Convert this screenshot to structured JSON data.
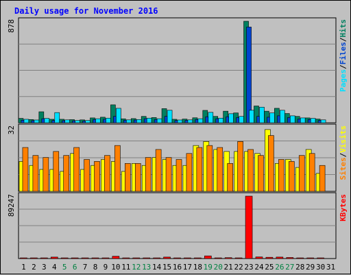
{
  "chart_data": {
    "type": "bar",
    "title": "Daily usage for November 2016",
    "x": [
      "1",
      "2",
      "3",
      "4",
      "5",
      "6",
      "7",
      "8",
      "9",
      "10",
      "11",
      "12",
      "13",
      "14",
      "15",
      "16",
      "17",
      "18",
      "19",
      "20",
      "21",
      "22",
      "23",
      "24",
      "25",
      "26",
      "27",
      "28",
      "29",
      "30",
      "31"
    ],
    "weekend_days": [
      5,
      6,
      12,
      13,
      19,
      20,
      26,
      27
    ],
    "panels": [
      {
        "id": "hits",
        "max_label": "878",
        "ymax": 878,
        "legend": [
          {
            "text": "Pages",
            "color": "#00e0ff"
          },
          {
            "text": "/",
            "color": "#000000"
          },
          {
            "text": "Files",
            "color": "#0044d0"
          },
          {
            "text": "/",
            "color": "#000000"
          },
          {
            "text": "Hits",
            "color": "#008060"
          }
        ],
        "series": [
          {
            "name": "Hits",
            "color": "#008060",
            "values": [
              38,
              28,
              95,
              30,
              30,
              27,
              25,
              42,
              48,
              155,
              34,
              36,
              55,
              45,
              122,
              30,
              32,
              43,
              107,
              55,
              100,
              85,
              878,
              145,
              100,
              125,
              80,
              55,
              42,
              32,
              null
            ]
          },
          {
            "name": "Files",
            "color": "#0044d0",
            "values": [
              22,
              18,
              35,
              20,
              18,
              17,
              15,
              28,
              30,
              55,
              22,
              24,
              35,
              28,
              55,
              20,
              21,
              28,
              52,
              35,
              52,
              45,
              828,
              55,
              48,
              60,
              45,
              32,
              28,
              20,
              null
            ]
          },
          {
            "name": "Pages",
            "color": "#00e0ff",
            "values": [
              30,
              24,
              38,
              88,
              25,
              20,
              20,
              35,
              40,
              125,
              25,
              28,
              40,
              35,
              108,
              24,
              25,
              35,
              90,
              40,
              78,
              55,
              108,
              135,
              85,
              108,
              60,
              42,
              38,
              25,
              null
            ]
          }
        ]
      },
      {
        "id": "visits",
        "max_label": "32",
        "ymax": 32,
        "legend": [
          {
            "text": "Sites",
            "color": "#ff8000"
          },
          {
            "text": "/",
            "color": "#000000"
          },
          {
            "text": "Visits",
            "color": "#ffff00"
          }
        ],
        "series": [
          {
            "name": "Visits",
            "color": "#ffff00",
            "values": [
              15,
              13,
              11,
              11,
              10,
              19,
              11,
              13,
              16,
              15,
              10,
              14,
              13,
              17,
              16,
              13,
              13,
              23,
              25,
              21,
              20,
              20,
              20,
              19,
              31,
              14,
              16,
              12,
              21,
              9,
              null
            ]
          },
          {
            "name": "Sites",
            "color": "#ff8000",
            "values": [
              22,
              18,
              17,
              20,
              18,
              22,
              16,
              15,
              18,
              23,
              14,
              14,
              17,
              21,
              17,
              16,
              19,
              22,
              23,
              22,
              14,
              25,
              21,
              18,
              28,
              16,
              15,
              18,
              19,
              13,
              null
            ]
          }
        ]
      },
      {
        "id": "kbytes",
        "max_label": "89247",
        "ymax": 89247,
        "legend": [
          {
            "text": "KBytes",
            "color": "#ff0000"
          }
        ],
        "series": [
          {
            "name": "KBytes",
            "color": "#ff0000",
            "values": [
              800,
              600,
              500,
              2100,
              500,
              500,
              450,
              700,
              900,
              3300,
              600,
              600,
              900,
              800,
              2100,
              500,
              500,
              800,
              3800,
              1000,
              1300,
              1000,
              89247,
              2300,
              1800,
              2100,
              1500,
              900,
              700,
              500,
              null
            ]
          }
        ]
      }
    ]
  }
}
